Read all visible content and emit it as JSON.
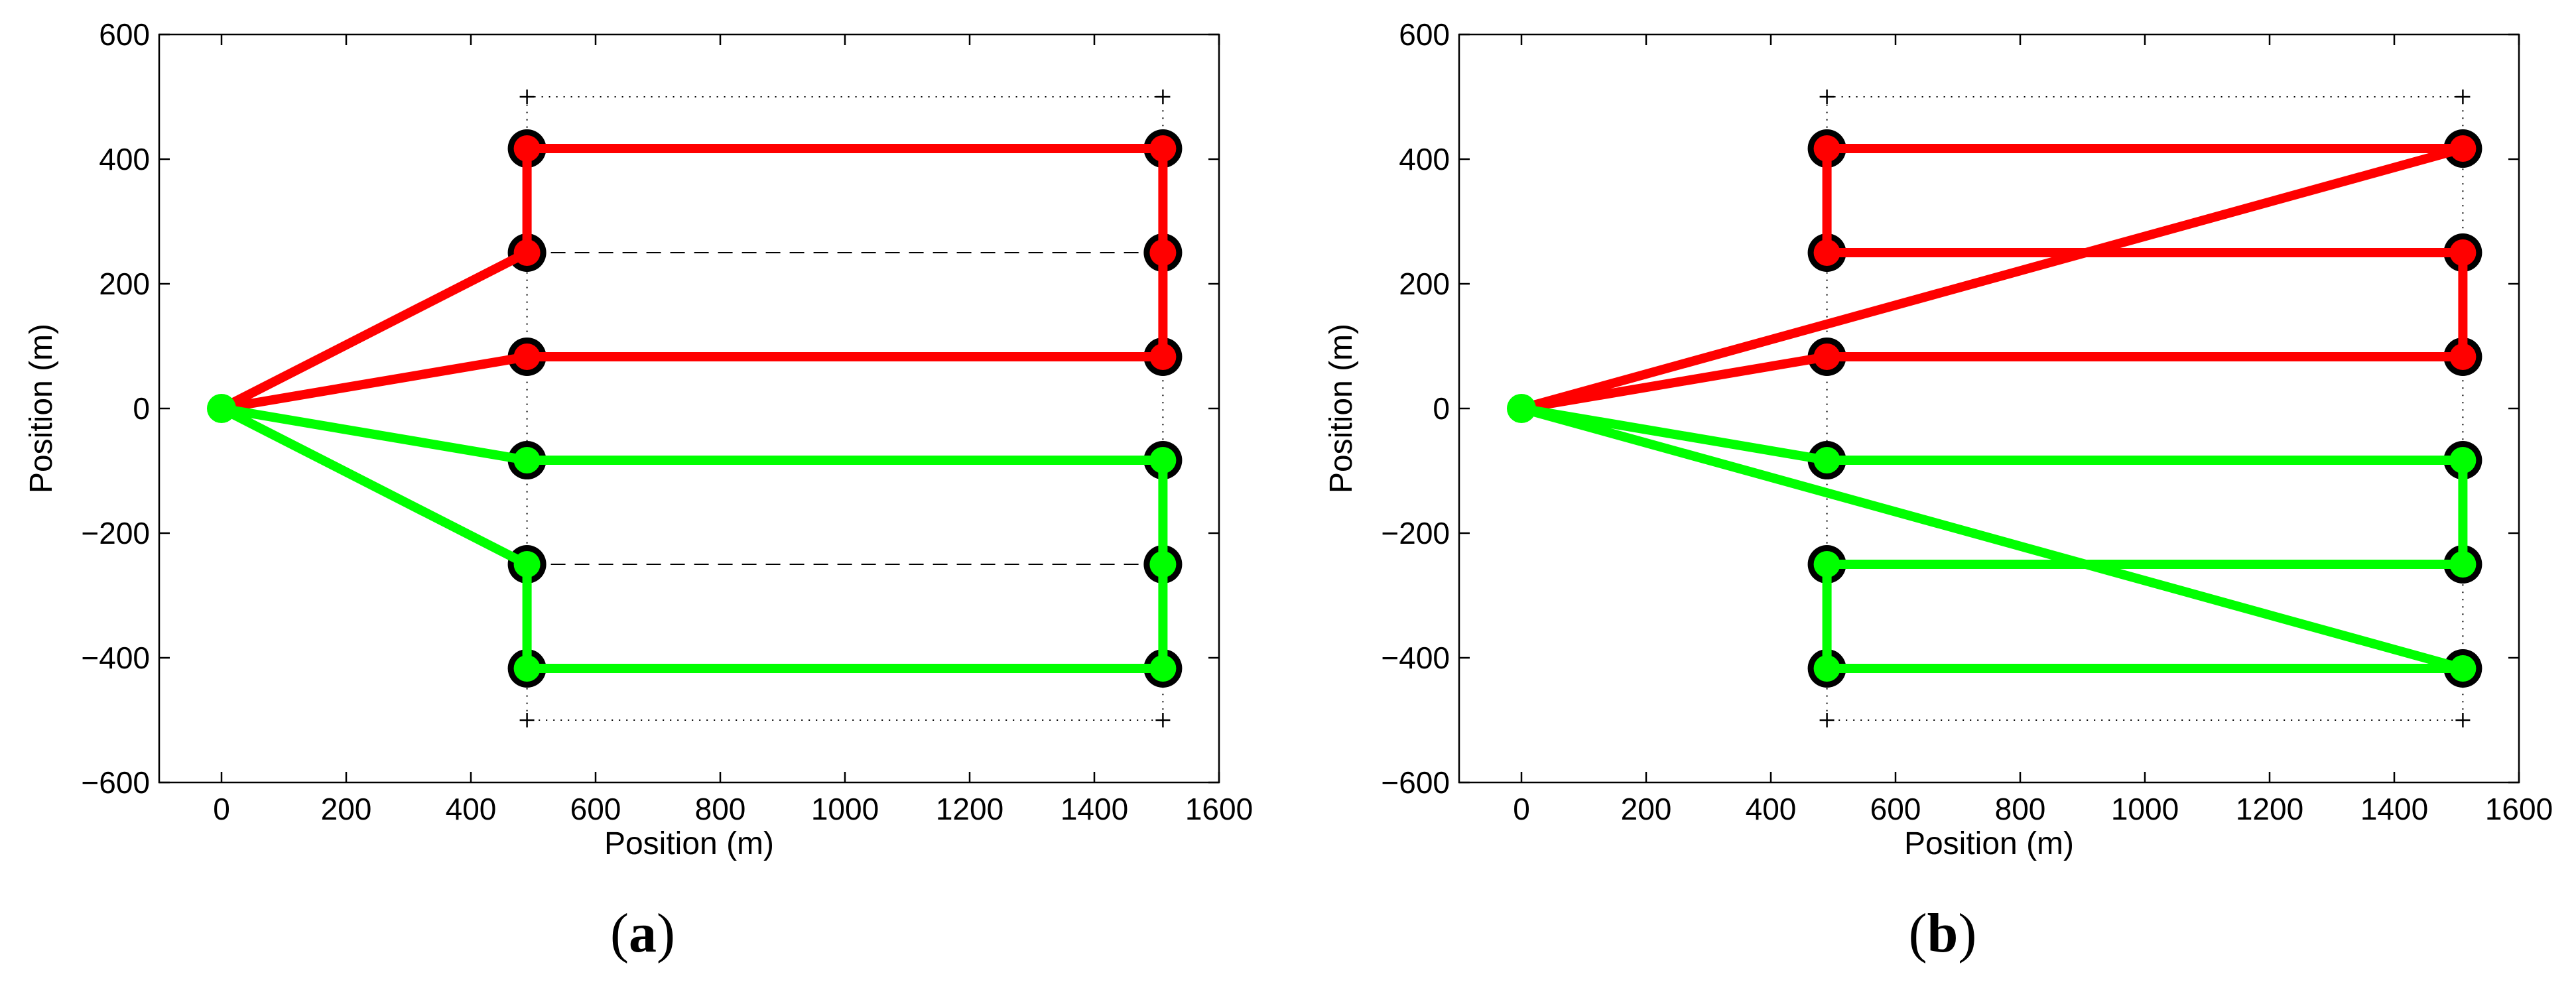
{
  "chart_data": [
    {
      "type": "line",
      "panel_label": "a",
      "xlabel": "Position (m)",
      "ylabel": "Position (m)",
      "xlim": [
        -100,
        1600
      ],
      "ylim": [
        -600,
        600
      ],
      "xticks": [
        0,
        200,
        400,
        600,
        800,
        1000,
        1200,
        1400,
        1600
      ],
      "yticks": [
        -600,
        -400,
        -200,
        0,
        200,
        400,
        600
      ],
      "grid": false,
      "start": {
        "x": 0,
        "y": 0,
        "color": "#00ff00"
      },
      "waypoints": [
        {
          "x": 490,
          "y": 417
        },
        {
          "x": 490,
          "y": 250
        },
        {
          "x": 490,
          "y": 83
        },
        {
          "x": 490,
          "y": -83
        },
        {
          "x": 490,
          "y": -250
        },
        {
          "x": 490,
          "y": -417
        },
        {
          "x": 1510,
          "y": 417
        },
        {
          "x": 1510,
          "y": 250
        },
        {
          "x": 1510,
          "y": 83
        },
        {
          "x": 1510,
          "y": -83
        },
        {
          "x": 1510,
          "y": -250
        },
        {
          "x": 1510,
          "y": -417
        }
      ],
      "boundary": {
        "x": [
          490,
          1510
        ],
        "y": [
          -500,
          500
        ]
      },
      "dashed_lines": [
        {
          "x": [
            490,
            1510
          ],
          "y": [
            250,
            250
          ]
        },
        {
          "x": [
            490,
            1510
          ],
          "y": [
            -250,
            -250
          ]
        }
      ],
      "series": [
        {
          "color": "#ff0000",
          "x": [
            0,
            490,
            490,
            1510,
            1510,
            1510,
            490,
            0
          ],
          "y": [
            0,
            250,
            417,
            417,
            250,
            83,
            83,
            0
          ]
        },
        {
          "color": "#00ff00",
          "x": [
            0,
            490,
            490,
            1510,
            1510,
            1510,
            490,
            0
          ],
          "y": [
            0,
            -250,
            -417,
            -417,
            -250,
            -83,
            -83,
            0
          ]
        }
      ]
    },
    {
      "type": "line",
      "panel_label": "b",
      "xlabel": "Position (m)",
      "ylabel": "Position (m)",
      "xlim": [
        -100,
        1600
      ],
      "ylim": [
        -600,
        600
      ],
      "xticks": [
        0,
        200,
        400,
        600,
        800,
        1000,
        1200,
        1400,
        1600
      ],
      "yticks": [
        -600,
        -400,
        -200,
        0,
        200,
        400,
        600
      ],
      "grid": false,
      "start": {
        "x": 0,
        "y": 0,
        "color": "#00ff00"
      },
      "waypoints": [
        {
          "x": 490,
          "y": 417
        },
        {
          "x": 490,
          "y": 250
        },
        {
          "x": 490,
          "y": 83
        },
        {
          "x": 490,
          "y": -83
        },
        {
          "x": 490,
          "y": -250
        },
        {
          "x": 490,
          "y": -417
        },
        {
          "x": 1510,
          "y": 417
        },
        {
          "x": 1510,
          "y": 250
        },
        {
          "x": 1510,
          "y": 83
        },
        {
          "x": 1510,
          "y": -83
        },
        {
          "x": 1510,
          "y": -250
        },
        {
          "x": 1510,
          "y": -417
        }
      ],
      "boundary": {
        "x": [
          490,
          1510
        ],
        "y": [
          -500,
          500
        ]
      },
      "dashed_lines": [],
      "series": [
        {
          "color": "#ff0000",
          "x": [
            0,
            1510,
            490,
            490,
            1510,
            1510,
            490,
            0
          ],
          "y": [
            0,
            417,
            417,
            250,
            250,
            83,
            83,
            0
          ]
        },
        {
          "color": "#00ff00",
          "x": [
            0,
            1510,
            490,
            490,
            1510,
            1510,
            490,
            0
          ],
          "y": [
            0,
            -417,
            -417,
            -250,
            -250,
            -83,
            -83,
            0
          ]
        }
      ]
    }
  ]
}
